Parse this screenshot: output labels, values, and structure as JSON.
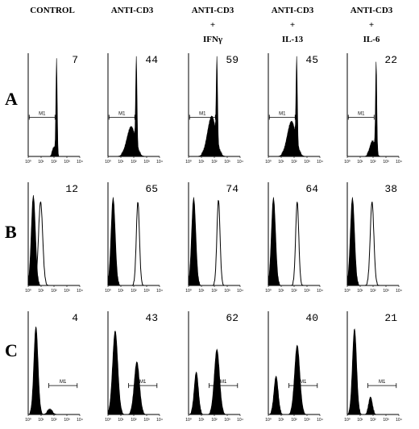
{
  "columns": [
    {
      "lines": [
        "CONTROL"
      ]
    },
    {
      "lines": [
        "ANTI-CD3"
      ]
    },
    {
      "lines": [
        "ANTI-CD3",
        "+",
        "IFNγ"
      ]
    },
    {
      "lines": [
        "ANTI-CD3",
        "+",
        "IL-13"
      ]
    },
    {
      "lines": [
        "ANTI-CD3",
        "+",
        "IL-6"
      ]
    }
  ],
  "rows": [
    {
      "label": "A",
      "values": [
        7,
        44,
        59,
        45,
        22
      ]
    },
    {
      "label": "B",
      "values": [
        12,
        65,
        74,
        64,
        38
      ]
    },
    {
      "label": "C",
      "values": [
        4,
        43,
        62,
        40,
        21
      ]
    }
  ],
  "gate_label": "M1",
  "x_tick_labels": [
    "10⁰",
    "10¹",
    "10²",
    "10³",
    "10⁴"
  ]
}
